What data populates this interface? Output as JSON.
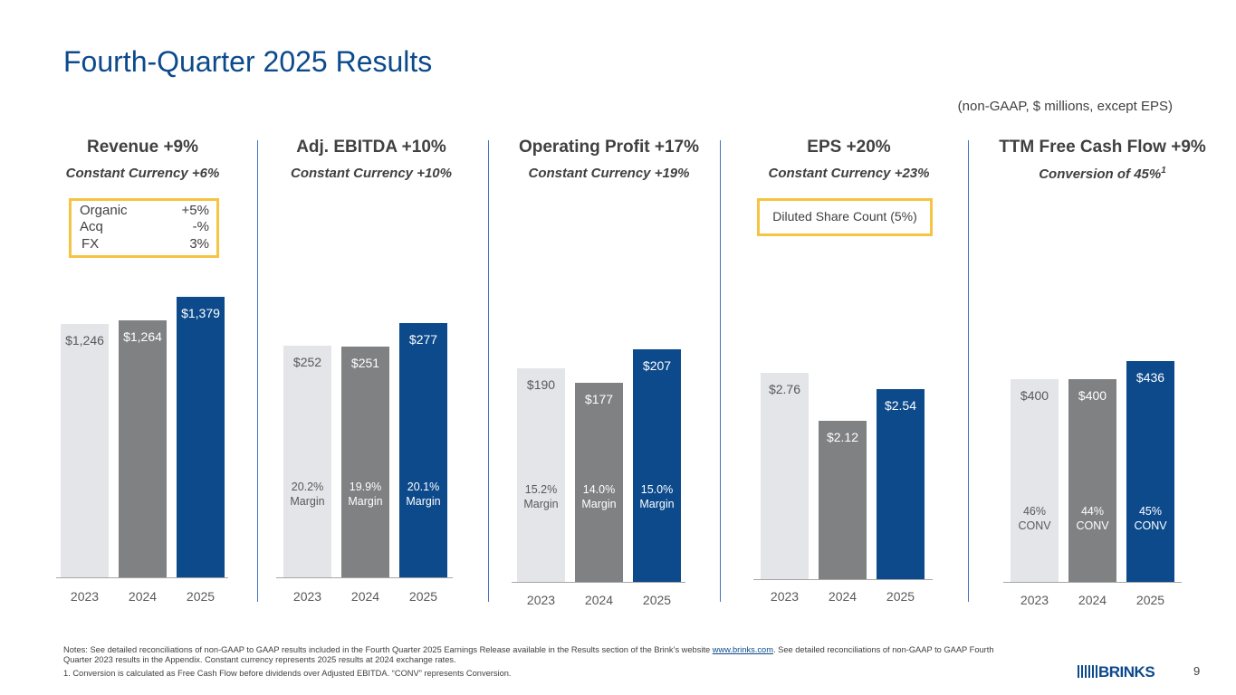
{
  "slide": {
    "title": "Fourth-Quarter 2025 Results",
    "units_note": "(non-GAAP, $ millions, except EPS)",
    "page_number": "9",
    "notes_prefix": "Notes: See detailed reconciliations of non-GAAP to GAAP results included in the Fourth Quarter 2025 Earnings Release available in the Results section of the Brink’s website ",
    "notes_link": "www.brinks.com",
    "notes_suffix": ". See detailed reconciliations of non-GAAP to GAAP Fourth Quarter 2023 results in the Appendix. Constant currency represents 2025 results at 2024 exchange rates.",
    "footnote_1": "1. Conversion is calculated as Free Cash Flow before dividends over Adjusted EBITDA. “CONV” represents Conversion.",
    "logo_text": "BRINKS"
  },
  "colors": {
    "bar_2023": "#e3e5e8",
    "bar_2024": "#7f8182",
    "bar_2025": "#0c4a8c",
    "title": "#0c4a8c",
    "box_border": "#f6c443"
  },
  "revenue_box": {
    "rows": [
      {
        "label": "Organic",
        "value": "+5%"
      },
      {
        "label": "Acq",
        "value": "-%"
      },
      {
        "label": "FX",
        "value": "3%"
      }
    ]
  },
  "eps_box": {
    "text": "Diluted Share Count (5%)"
  },
  "chart_data": [
    {
      "type": "bar",
      "title": "Revenue +9%",
      "subtitle": "Constant Currency +6%",
      "categories": [
        "2023",
        "2024",
        "2025"
      ],
      "values": [
        1246,
        1264,
        1379
      ],
      "value_labels": [
        "$1,246",
        "$1,264",
        "$1,379"
      ],
      "ylim": [
        0,
        1379
      ]
    },
    {
      "type": "bar",
      "title": "Adj. EBITDA  +10%",
      "subtitle": "Constant Currency +10%",
      "categories": [
        "2023",
        "2024",
        "2025"
      ],
      "values": [
        252,
        251,
        277
      ],
      "value_labels": [
        "$252",
        "$251",
        "$277"
      ],
      "margin_labels": [
        "20.2%\nMargin",
        "19.9%\nMargin",
        "20.1%\nMargin"
      ],
      "ylim": [
        0,
        277
      ]
    },
    {
      "type": "bar",
      "title": "Operating Profit +17%",
      "subtitle": "Constant Currency +19%",
      "categories": [
        "2023",
        "2024",
        "2025"
      ],
      "values": [
        190,
        177,
        207
      ],
      "value_labels": [
        "$190",
        "$177",
        "$207"
      ],
      "margin_labels": [
        "15.2%\nMargin",
        "14.0%\nMargin",
        "15.0%\nMargin"
      ],
      "ylim": [
        0,
        207
      ]
    },
    {
      "type": "bar",
      "title": "EPS  +20%",
      "subtitle": "Constant Currency +23%",
      "categories": [
        "2023",
        "2024",
        "2025"
      ],
      "values": [
        2.76,
        2.12,
        2.54
      ],
      "value_labels": [
        "$2.76",
        "$2.12",
        "$2.54"
      ],
      "ylim": [
        0,
        2.76
      ]
    },
    {
      "type": "bar",
      "title": "TTM Free Cash Flow +9%",
      "subtitle": "Conversion of 45%",
      "subtitle_sup": "1",
      "categories": [
        "2023",
        "2024",
        "2025"
      ],
      "values": [
        400,
        400,
        436
      ],
      "value_labels": [
        "$400",
        "$400",
        "$436"
      ],
      "margin_labels": [
        "46%\nCONV",
        "44%\nCONV",
        "45%\nCONV"
      ],
      "ylim": [
        0,
        436
      ]
    }
  ]
}
